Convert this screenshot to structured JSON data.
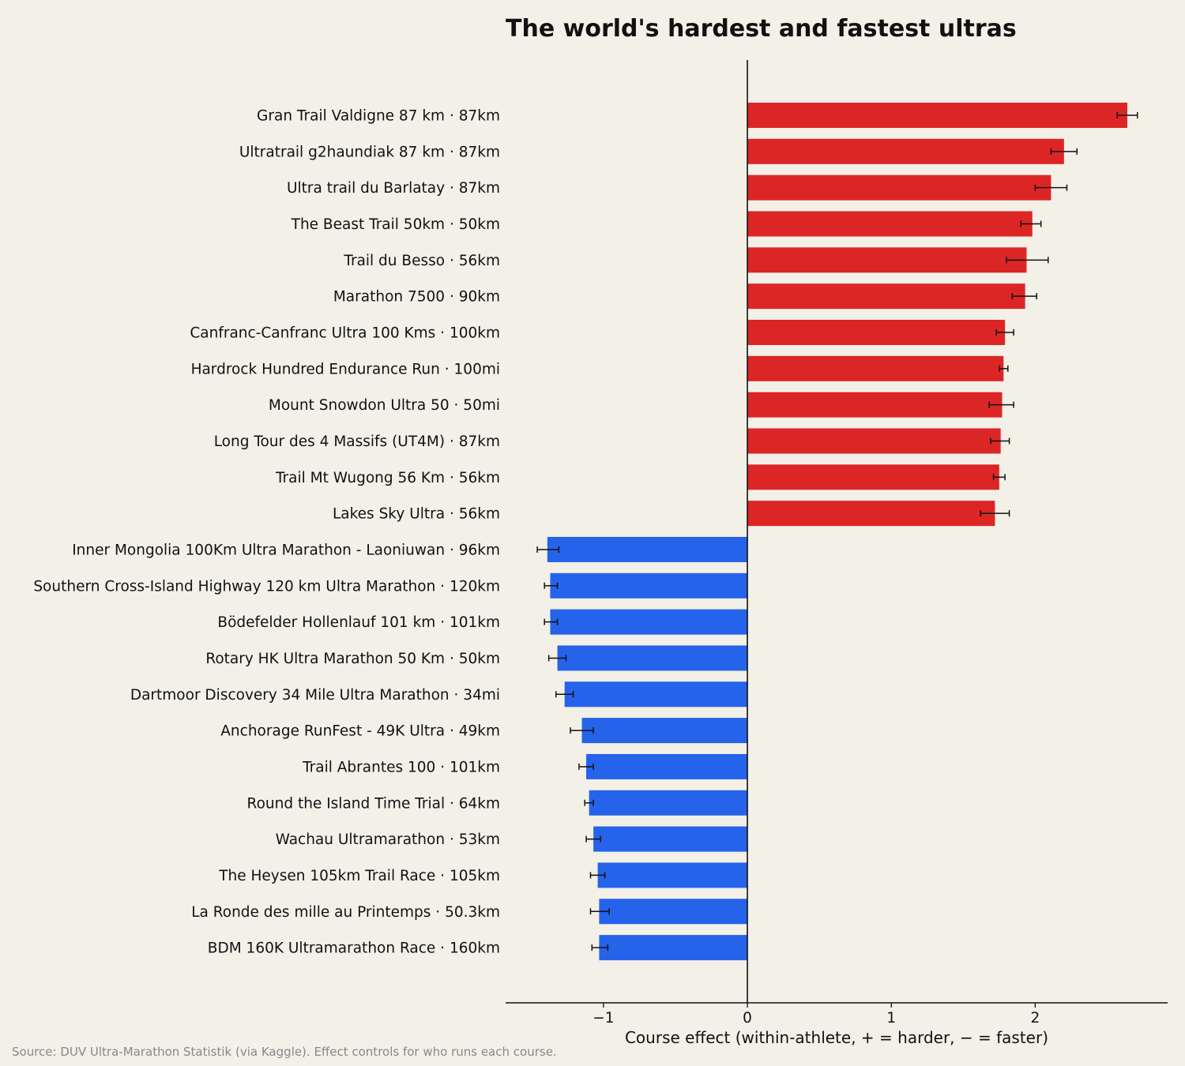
{
  "chart_data": {
    "type": "bar",
    "orientation": "horizontal",
    "title": "The world's hardest and fastest ultras",
    "xlabel": "Course effect  (within-athlete, + = harder, − = faster)",
    "source": "Source: DUV Ultra-Marathon Statistik (via Kaggle). Effect controls for who runs each course.",
    "xlim": [
      -1.68,
      2.92
    ],
    "xticks": [
      -1,
      0,
      1,
      2
    ],
    "xtick_labels": [
      "−1",
      "0",
      "1",
      "2"
    ],
    "grid": false,
    "colors": {
      "positive": "#dc2626",
      "negative": "#2563eb",
      "background": "#f3f0e8"
    },
    "categories": [
      "Gran Trail Valdigne 87 km  ·  87km",
      "Ultratrail g2haundiak 87 km  ·  87km",
      "Ultra trail du Barlatay  ·  87km",
      "The Beast Trail 50km  ·  50km",
      "Trail du Besso  ·  56km",
      "Marathon 7500  ·  90km",
      "Canfranc-Canfranc Ultra 100 Kms  ·  100km",
      "Hardrock Hundred Endurance Run  ·  100mi",
      "Mount Snowdon Ultra 50  ·  50mi",
      "Long Tour des 4 Massifs (UT4M)  ·  87km",
      "Trail Mt Wugong 56 Km  ·  56km",
      "Lakes Sky Ultra  ·  56km",
      "Inner Mongolia 100Km Ultra Marathon - Laoniuwan  ·  96km",
      "Southern Cross-Island Highway 120 km Ultra Marathon  ·  120km",
      "Bödefelder Hollenlauf 101 km  ·  101km",
      "Rotary HK Ultra Marathon 50 Km  ·  50km",
      "Dartmoor Discovery 34 Mile Ultra Marathon  ·  34mi",
      "Anchorage RunFest - 49K Ultra  ·  49km",
      "Trail Abrantes 100  ·  101km",
      "Round the Island Time Trial  ·  64km",
      "Wachau Ultramarathon  ·  53km",
      "The Heysen 105km Trail Race  ·  105km",
      "La Ronde des mille au Printemps  ·  50.3km",
      "BDM 160K Ultramarathon Race  ·  160km"
    ],
    "values": [
      2.64,
      2.2,
      2.11,
      1.98,
      1.94,
      1.93,
      1.79,
      1.78,
      1.77,
      1.76,
      1.75,
      1.72,
      -1.39,
      -1.37,
      -1.37,
      -1.32,
      -1.27,
      -1.15,
      -1.12,
      -1.1,
      -1.07,
      -1.04,
      -1.03,
      -1.03
    ],
    "error_low": [
      2.57,
      2.11,
      2.0,
      1.9,
      1.8,
      1.84,
      1.73,
      1.75,
      1.68,
      1.69,
      1.71,
      1.62,
      -1.46,
      -1.41,
      -1.41,
      -1.38,
      -1.33,
      -1.23,
      -1.17,
      -1.13,
      -1.12,
      -1.09,
      -1.09,
      -1.08
    ],
    "error_high": [
      2.71,
      2.29,
      2.22,
      2.04,
      2.09,
      2.01,
      1.85,
      1.81,
      1.85,
      1.82,
      1.79,
      1.82,
      -1.31,
      -1.32,
      -1.32,
      -1.26,
      -1.21,
      -1.07,
      -1.07,
      -1.07,
      -1.02,
      -0.99,
      -0.96,
      -0.97
    ]
  }
}
